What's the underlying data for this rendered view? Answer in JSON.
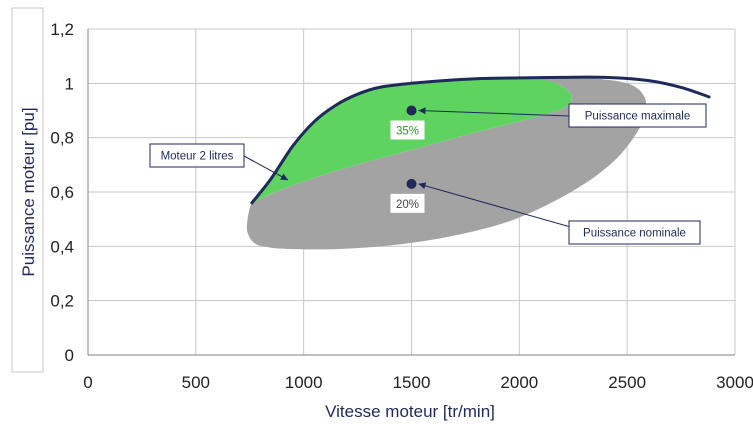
{
  "chart_data": {
    "type": "area",
    "title": "",
    "xlabel": "Vitesse moteur [tr/min]",
    "ylabel": "Puissance moteur [pu]",
    "xlim": [
      0,
      3000
    ],
    "ylim": [
      0,
      1.2
    ],
    "x_ticks": [
      "0",
      "500",
      "1000",
      "1500",
      "2000",
      "2500",
      "3000"
    ],
    "y_ticks": [
      "0",
      "0,2",
      "0,4",
      "0,6",
      "0,8",
      "1",
      "1,2"
    ],
    "grid": true,
    "colors": {
      "envelope": "#1f2a5a",
      "green_zone": "#5fd35f",
      "grey_zone": "#a3a3a3",
      "points": "#1f2a5a",
      "pct_green_text": "#2f9a2f",
      "pct_grey_text": "#444444"
    },
    "series": [
      {
        "name": "Moteur 2 litres",
        "kind": "line",
        "x": [
          760,
          850,
          950,
          1050,
          1150,
          1250,
          1350,
          1500,
          1650,
          1800,
          2000,
          2200,
          2400,
          2600,
          2750,
          2880
        ],
        "y": [
          0.56,
          0.65,
          0.77,
          0.86,
          0.92,
          0.96,
          0.985,
          1.0,
          1.01,
          1.017,
          1.02,
          1.022,
          1.022,
          1.01,
          0.985,
          0.95
        ]
      },
      {
        "kind": "area",
        "x": [
          770,
          850,
          950,
          1050,
          1150,
          1250,
          1350,
          1500,
          1650,
          1800,
          1950,
          2070,
          2170,
          2230,
          2240,
          2180,
          2000,
          1800,
          1500,
          1200,
          950,
          800
        ],
        "y": [
          0.56,
          0.65,
          0.77,
          0.86,
          0.92,
          0.96,
          0.985,
          1.0,
          1.01,
          1.017,
          1.02,
          1.02,
          1.0,
          0.97,
          0.935,
          0.9,
          0.86,
          0.82,
          0.755,
          0.69,
          0.625,
          0.575
        ]
      },
      {
        "kind": "area",
        "x": [
          760,
          800,
          950,
          1200,
          1500,
          1800,
          2000,
          2180,
          2240,
          2230,
          2170,
          2070,
          2300,
          2500,
          2580,
          2580,
          2530,
          2420,
          2240,
          1980,
          1700,
          1420,
          1150,
          950,
          850,
          775,
          740,
          740
        ],
        "y": [
          0.56,
          0.575,
          0.625,
          0.69,
          0.755,
          0.82,
          0.86,
          0.9,
          0.935,
          0.97,
          1.0,
          1.02,
          1.02,
          1.0,
          0.95,
          0.88,
          0.8,
          0.7,
          0.6,
          0.5,
          0.44,
          0.405,
          0.39,
          0.39,
          0.395,
          0.41,
          0.45,
          0.5
        ]
      }
    ],
    "points": [
      {
        "name": "Puissance maximale",
        "x": 1500,
        "y": 0.9,
        "pct": "35%"
      },
      {
        "name": "Puissance nominale",
        "x": 1500,
        "y": 0.63,
        "pct": "20%"
      }
    ],
    "annotations": [
      {
        "text": "Moteur 2 litres",
        "target": "envelope"
      },
      {
        "text": "Puissance maximale",
        "target": "Puissance maximale"
      },
      {
        "text": "Puissance nominale",
        "target": "Puissance nominale"
      }
    ]
  }
}
